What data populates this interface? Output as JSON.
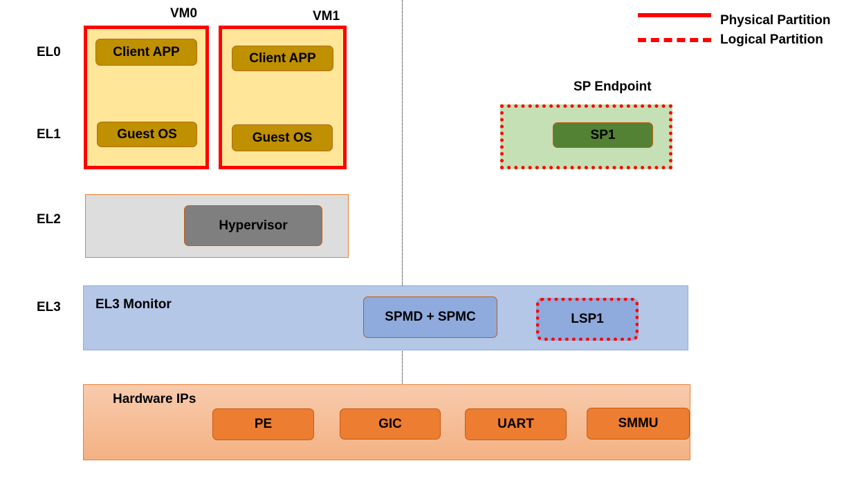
{
  "legend": {
    "physical": "Physical Partition",
    "logical": "Logical Partition"
  },
  "levels": [
    "EL0",
    "EL1",
    "EL2",
    "EL3"
  ],
  "vm0": {
    "title": "VM0",
    "client": "Client APP",
    "guest": "Guest OS"
  },
  "vm1": {
    "title": "VM1",
    "client": "Client APP",
    "guest": "Guest OS"
  },
  "hypervisor": "Hypervisor",
  "el3": {
    "title": "EL3 Monitor",
    "spmd": "SPMD + SPMC",
    "lsp": "LSP1"
  },
  "sp": {
    "title": "SP Endpoint",
    "sp1": "SP1"
  },
  "hardware": {
    "title": "Hardware IPs",
    "items": [
      "PE",
      "GIC",
      "UART",
      "SMMU"
    ]
  },
  "colors": {
    "partition": "#FF0000",
    "vm_fill": "#FFE699",
    "app": "#BF9000",
    "hw": "#ED7D31",
    "el3": "#B4C7E7",
    "sp_fill": "#C5E0B4",
    "sp1": "#548235"
  }
}
